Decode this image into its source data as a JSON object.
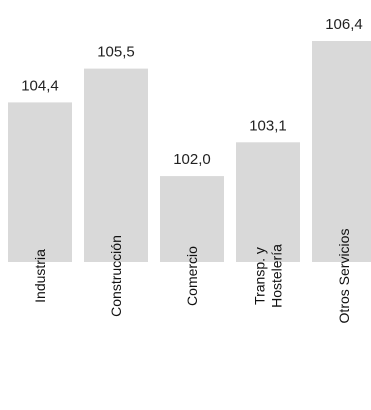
{
  "chart_data": {
    "type": "bar",
    "title": "",
    "xlabel": "",
    "ylabel": "",
    "categories": [
      [
        "Industria"
      ],
      [
        "Construcción"
      ],
      [
        "Comercio"
      ],
      [
        "Transp. y",
        "Hostelería"
      ],
      [
        "Otros Servicios"
      ]
    ],
    "values": [
      104.4,
      105.5,
      102.0,
      103.1,
      106.4
    ],
    "value_labels": [
      "104,4",
      "105,5",
      "102,0",
      "103,1",
      "106,4"
    ],
    "ylim": [
      99.2,
      106.4
    ],
    "grid": false,
    "legend": "none",
    "bar_color": "#d9d9d9"
  }
}
